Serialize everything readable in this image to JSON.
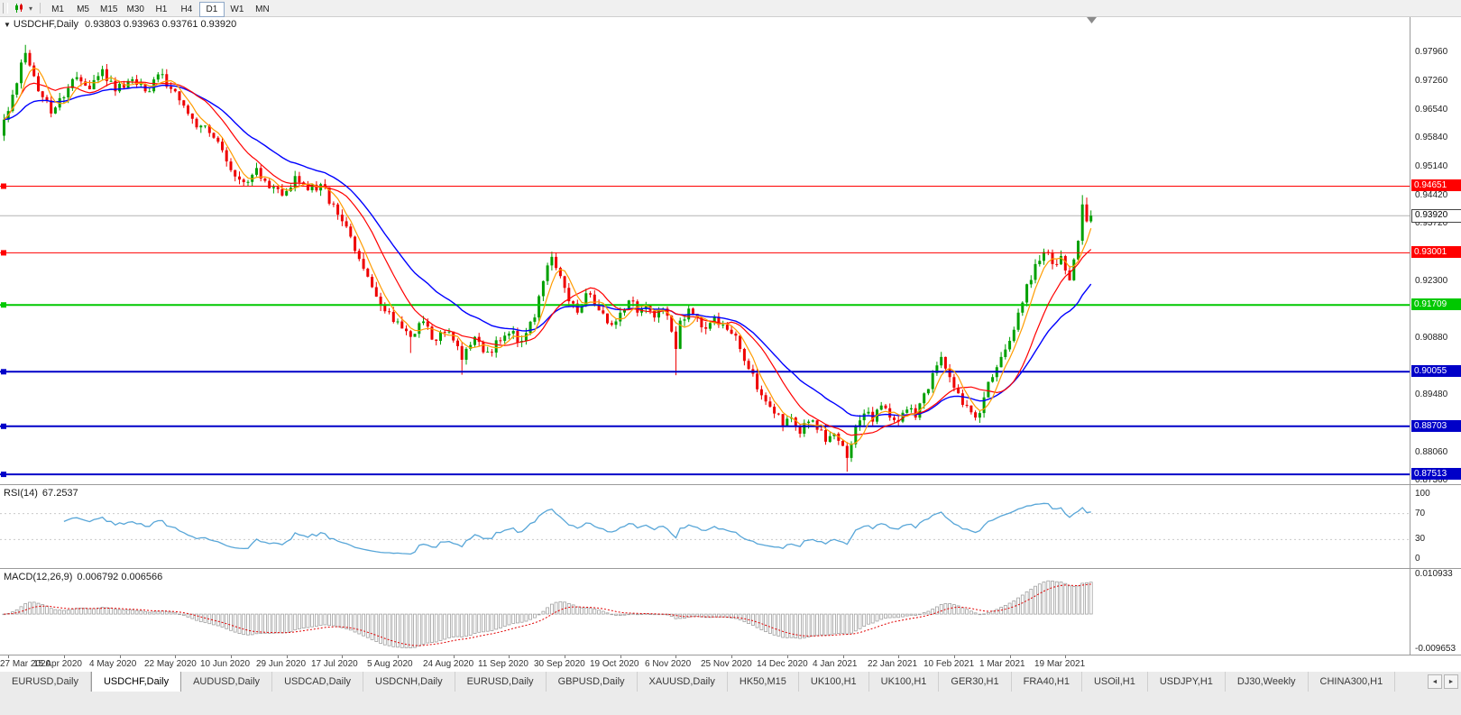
{
  "toolbar": {
    "timeframes": [
      "M1",
      "M5",
      "M15",
      "M30",
      "H1",
      "H4",
      "D1",
      "W1",
      "MN"
    ],
    "active_timeframe": "D1"
  },
  "title": {
    "symbol": "USDCHF,Daily",
    "ohlc": "0.93803 0.93963 0.93761 0.93920"
  },
  "chart_data": {
    "type": "candlestick",
    "symbol": "USDCHF",
    "timeframe": "Daily",
    "current_price": "0.93920",
    "y_axis": {
      "max": 0.9886,
      "min": 0.8727,
      "labels": [
        "0.97960",
        "0.97260",
        "0.96540",
        "0.95840",
        "0.95140",
        "0.94420",
        "0.93720",
        "0.92300",
        "0.90880",
        "0.89480",
        "0.88060",
        "0.87360"
      ]
    },
    "x_axis": {
      "labels": [
        "27 Mar 2020",
        "15 Apr 2020",
        "4 May 2020",
        "22 May 2020",
        "10 Jun 2020",
        "29 Jun 2020",
        "17 Jul 2020",
        "5 Aug 2020",
        "24 Aug 2020",
        "11 Sep 2020",
        "30 Sep 2020",
        "19 Oct 2020",
        "6 Nov 2020",
        "25 Nov 2020",
        "14 Dec 2020",
        "4 Jan 2021",
        "22 Jan 2021",
        "10 Feb 2021",
        "1 Mar 2021",
        "19 Mar 2021"
      ],
      "first_index": 1,
      "step": 13
    },
    "hlines": [
      {
        "value": 0.94651,
        "label": "0.94651",
        "color": "#ff0000",
        "width": 1
      },
      {
        "value": 0.93001,
        "label": "0.93001",
        "color": "#ff0000",
        "width": 1
      },
      {
        "value": 0.91709,
        "label": "0.91709",
        "color": "#00c800",
        "width": 2
      },
      {
        "value": 0.90055,
        "label": "0.90055",
        "color": "#0000c8",
        "width": 2
      },
      {
        "value": 0.88703,
        "label": "0.88703",
        "color": "#0000c8",
        "width": 2
      },
      {
        "value": 0.87513,
        "label": "0.87513",
        "color": "#0000c8",
        "width": 2
      }
    ],
    "colors": {
      "up": "#00a000",
      "down": "#ee0000",
      "ma_fast": "#ff9c00",
      "ma_mid": "#ff0000",
      "ma_slow": "#0000ff",
      "bid_line": "#b4b4b4"
    },
    "candles": {
      "count": 255,
      "anchors": [
        [
          0,
          0.963
        ],
        [
          3,
          0.972
        ],
        [
          5,
          0.9795
        ],
        [
          8,
          0.97
        ],
        [
          11,
          0.9645
        ],
        [
          14,
          0.9685
        ],
        [
          17,
          0.9735
        ],
        [
          20,
          0.9705
        ],
        [
          23,
          0.9755
        ],
        [
          26,
          0.97
        ],
        [
          30,
          0.973
        ],
        [
          33,
          0.97
        ],
        [
          36,
          0.9742
        ],
        [
          40,
          0.97
        ],
        [
          43,
          0.9645
        ],
        [
          46,
          0.9615
        ],
        [
          49,
          0.9585
        ],
        [
          53,
          0.9505
        ],
        [
          56,
          0.9475
        ],
        [
          59,
          0.951
        ],
        [
          62,
          0.946
        ],
        [
          65,
          0.9442
        ],
        [
          68,
          0.949
        ],
        [
          71,
          0.9455
        ],
        [
          74,
          0.947
        ],
        [
          77,
          0.942
        ],
        [
          80,
          0.9365
        ],
        [
          83,
          0.9285
        ],
        [
          86,
          0.9215
        ],
        [
          89,
          0.9155
        ],
        [
          92,
          0.913
        ],
        [
          95,
          0.9092
        ],
        [
          98,
          0.913
        ],
        [
          101,
          0.9082
        ],
        [
          104,
          0.9105
        ],
        [
          107,
          0.9035
        ],
        [
          110,
          0.9092
        ],
        [
          113,
          0.9055
        ],
        [
          116,
          0.9082
        ],
        [
          118,
          0.91
        ],
        [
          121,
          0.9082
        ],
        [
          124,
          0.914
        ],
        [
          126,
          0.923
        ],
        [
          128,
          0.929
        ],
        [
          130,
          0.9242
        ],
        [
          132,
          0.918
        ],
        [
          134,
          0.9152
        ],
        [
          136,
          0.92
        ],
        [
          138,
          0.9172
        ],
        [
          140,
          0.915
        ],
        [
          142,
          0.9122
        ],
        [
          144,
          0.9152
        ],
        [
          146,
          0.9182
        ],
        [
          148,
          0.9152
        ],
        [
          150,
          0.9172
        ],
        [
          152,
          0.914
        ],
        [
          154,
          0.9162
        ],
        [
          156,
          0.9105
        ],
        [
          157,
          0.9062
        ],
        [
          158,
          0.9132
        ],
        [
          160,
          0.9162
        ],
        [
          162,
          0.914
        ],
        [
          164,
          0.9112
        ],
        [
          166,
          0.9142
        ],
        [
          168,
          0.9122
        ],
        [
          170,
          0.91
        ],
        [
          172,
          0.9062
        ],
        [
          174,
          0.9012
        ],
        [
          176,
          0.8962
        ],
        [
          178,
          0.8932
        ],
        [
          180,
          0.8902
        ],
        [
          182,
          0.8872
        ],
        [
          184,
          0.8892
        ],
        [
          186,
          0.8852
        ],
        [
          188,
          0.8882
        ],
        [
          190,
          0.8862
        ],
        [
          192,
          0.8832
        ],
        [
          194,
          0.8852
        ],
        [
          196,
          0.8822
        ],
        [
          197,
          0.8792
        ],
        [
          199,
          0.8872
        ],
        [
          201,
          0.8902
        ],
        [
          203,
          0.8882
        ],
        [
          205,
          0.8922
        ],
        [
          207,
          0.8892
        ],
        [
          209,
          0.8882
        ],
        [
          211,
          0.8912
        ],
        [
          213,
          0.8892
        ],
        [
          215,
          0.8952
        ],
        [
          217,
          0.9002
        ],
        [
          219,
          0.9042
        ],
        [
          221,
          0.8992
        ],
        [
          223,
          0.8952
        ],
        [
          225,
          0.8922
        ],
        [
          227,
          0.8892
        ],
        [
          229,
          0.8942
        ],
        [
          231,
          0.8992
        ],
        [
          233,
          0.9042
        ],
        [
          235,
          0.9082
        ],
        [
          237,
          0.9152
        ],
        [
          239,
          0.9222
        ],
        [
          241,
          0.9272
        ],
        [
          243,
          0.9302
        ],
        [
          245,
          0.9272
        ],
        [
          247,
          0.9292
        ],
        [
          249,
          0.9232
        ],
        [
          251,
          0.933
        ],
        [
          252,
          0.942
        ],
        [
          253,
          0.9378
        ],
        [
          254,
          0.9392
        ]
      ],
      "spikes": [
        {
          "i": 5,
          "h": 0.9815
        },
        {
          "i": 95,
          "l": 0.9052
        },
        {
          "i": 107,
          "l": 0.8998
        },
        {
          "i": 128,
          "h": 0.9303
        },
        {
          "i": 157,
          "l": 0.8997
        },
        {
          "i": 197,
          "l": 0.8758
        },
        {
          "i": 252,
          "h": 0.9443
        },
        {
          "i": 253,
          "h": 0.9437
        }
      ]
    }
  },
  "rsi": {
    "name": "RSI(14)",
    "value": "67.2537",
    "color": "#58a6d8",
    "levels": [
      70,
      30
    ],
    "range": [
      0,
      100
    ],
    "axis_labels": [
      "100",
      "70",
      "30",
      "0"
    ]
  },
  "macd": {
    "name": "MACD(12,26,9)",
    "value": "0.006792 0.006566",
    "axis_max": "0.010933",
    "axis_min": "-0.009653",
    "histogram_color": "#a0a0a0",
    "signal_color": "#e00000"
  },
  "tabs": {
    "active_index": 1,
    "items": [
      "EURUSD,Daily",
      "USDCHF,Daily",
      "AUDUSD,Daily",
      "USDCAD,Daily",
      "USDCNH,Daily",
      "EURUSD,Daily",
      "GBPUSD,Daily",
      "XAUUSD,Daily",
      "HK50,M15",
      "UK100,H1",
      "UK100,H1",
      "GER30,H1",
      "FRA40,H1",
      "USOil,H1",
      "USDJPY,H1",
      "DJ30,Weekly",
      "CHINA300,H1"
    ]
  }
}
